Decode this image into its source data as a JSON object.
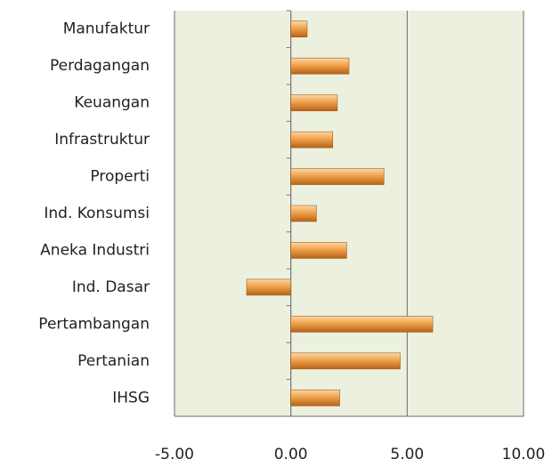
{
  "chart_data": {
    "type": "bar",
    "orientation": "horizontal",
    "categories": [
      "Manufaktur",
      "Perdagangan",
      "Keuangan",
      "Infrastruktur",
      "Properti",
      "Ind. Konsumsi",
      "Aneka Industri",
      "Ind. Dasar",
      "Pertambangan",
      "Pertanian",
      "IHSG"
    ],
    "values": [
      0.7,
      2.5,
      2.0,
      1.8,
      4.0,
      1.1,
      2.4,
      -1.9,
      6.1,
      4.7,
      2.1
    ],
    "color": "#e8922e",
    "xlim": [
      -5,
      10
    ],
    "xticks": [
      {
        "value": -5,
        "label": "-5.00"
      },
      {
        "value": 0,
        "label": "0.00"
      },
      {
        "value": 5,
        "label": "5.00"
      },
      {
        "value": 10,
        "label": "10.00"
      }
    ],
    "grid": true
  }
}
